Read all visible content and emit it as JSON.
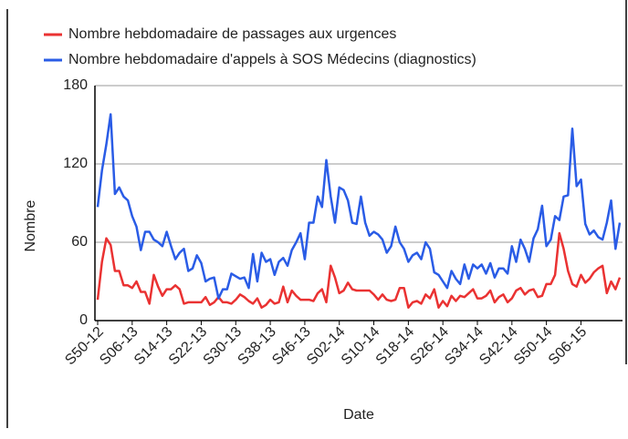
{
  "chart_data": {
    "type": "line",
    "x_label": "Date",
    "y_label": "Nombre",
    "categories": [
      "S50-12",
      null,
      null,
      null,
      null,
      null,
      null,
      null,
      "S06-13",
      null,
      null,
      null,
      null,
      null,
      null,
      null,
      "S14-13",
      null,
      null,
      null,
      null,
      null,
      null,
      null,
      "S22-13",
      null,
      null,
      null,
      null,
      null,
      null,
      null,
      "S30-13",
      null,
      null,
      null,
      null,
      null,
      null,
      null,
      "S38-13",
      null,
      null,
      null,
      null,
      null,
      null,
      null,
      "S46-13",
      null,
      null,
      null,
      null,
      null,
      null,
      null,
      "S02-14",
      null,
      null,
      null,
      null,
      null,
      null,
      null,
      "S10-14",
      null,
      null,
      null,
      null,
      null,
      null,
      null,
      "S18-14",
      null,
      null,
      null,
      null,
      null,
      null,
      null,
      "S26-14",
      null,
      null,
      null,
      null,
      null,
      null,
      null,
      "S34-14",
      null,
      null,
      null,
      null,
      null,
      null,
      null,
      "S42-14",
      null,
      null,
      null,
      null,
      null,
      null,
      null,
      "S50-14",
      null,
      null,
      null,
      null,
      null,
      null,
      null,
      "S06-15",
      null,
      null,
      null,
      null,
      null,
      null,
      null,
      null,
      null
    ],
    "series": [
      {
        "name": "Nombre hebdomadaire de passages aux urgences",
        "color": "#ea3232",
        "values": [
          16,
          45,
          63,
          58,
          38,
          38,
          27,
          27,
          25,
          30,
          22,
          22,
          13,
          35,
          26,
          19,
          24,
          24,
          27,
          24,
          13,
          14,
          14,
          14,
          14,
          18,
          12,
          14,
          18,
          14,
          14,
          13,
          16,
          20,
          18,
          15,
          13,
          17,
          10,
          12,
          16,
          13,
          14,
          26,
          14,
          23,
          19,
          16,
          16,
          16,
          15,
          21,
          24,
          14,
          42,
          33,
          21,
          23,
          29,
          24,
          23,
          23,
          23,
          23,
          20,
          16,
          20,
          16,
          15,
          16,
          25,
          25,
          10,
          14,
          15,
          13,
          20,
          17,
          24,
          10,
          15,
          11,
          19,
          15,
          19,
          18,
          21,
          24,
          17,
          17,
          19,
          23,
          14,
          18,
          20,
          14,
          17,
          23,
          25,
          20,
          23,
          24,
          18,
          19,
          28,
          28,
          35,
          67,
          55,
          38,
          28,
          26,
          35,
          29,
          32,
          37,
          40,
          42,
          21,
          30,
          24,
          33
        ]
      },
      {
        "name": "Nombre hebdomadaire d'appels à SOS Médecins (diagnostics)",
        "color": "#2a5ce6",
        "values": [
          87,
          115,
          135,
          158,
          97,
          102,
          95,
          92,
          80,
          72,
          54,
          68,
          68,
          62,
          60,
          57,
          68,
          57,
          47,
          52,
          55,
          38,
          40,
          50,
          44,
          30,
          32,
          33,
          17,
          24,
          24,
          36,
          34,
          32,
          33,
          25,
          51,
          30,
          52,
          45,
          47,
          35,
          45,
          48,
          42,
          54,
          60,
          67,
          47,
          75,
          75,
          95,
          87,
          123,
          95,
          75,
          102,
          100,
          92,
          75,
          74,
          95,
          75,
          65,
          68,
          66,
          62,
          52,
          57,
          72,
          60,
          55,
          45,
          50,
          52,
          47,
          60,
          55,
          37,
          35,
          30,
          25,
          38,
          32,
          28,
          43,
          32,
          43,
          40,
          43,
          36,
          44,
          33,
          40,
          40,
          36,
          57,
          45,
          62,
          55,
          45,
          63,
          70,
          88,
          57,
          62,
          80,
          77,
          95,
          96,
          147,
          103,
          108,
          74,
          66,
          69,
          64,
          62,
          75,
          92,
          55,
          75
        ]
      }
    ],
    "ylim": [
      0,
      180
    ],
    "yticks": [
      0,
      60,
      120,
      180
    ],
    "grid": true
  }
}
